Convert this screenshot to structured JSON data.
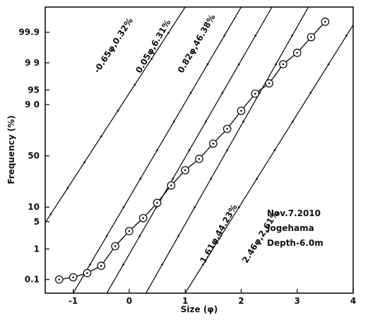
{
  "chart_data": {
    "type": "line",
    "xlabel": "Size (φ)",
    "ylabel": "Frequency (%)",
    "xlim": [
      -1.5,
      4.0
    ],
    "ylim_probability_percent": [
      0.03,
      99.99
    ],
    "y_scale": "probability",
    "grid": false,
    "x_ticks": [
      {
        "value": -1,
        "label": "-1"
      },
      {
        "value": 0,
        "label": "0"
      },
      {
        "value": 1,
        "label": "1"
      },
      {
        "value": 2,
        "label": "2"
      },
      {
        "value": 3,
        "label": "3"
      },
      {
        "value": 4,
        "label": "4"
      }
    ],
    "y_ticks": [
      {
        "value": 0.1,
        "label": "0.1"
      },
      {
        "value": 1,
        "label": "1"
      },
      {
        "value": 5,
        "label": "5"
      },
      {
        "value": 10,
        "label": "10"
      },
      {
        "value": 50,
        "label": "50"
      },
      {
        "value": 90,
        "label": "9 0"
      },
      {
        "value": 95,
        "label": "95"
      },
      {
        "value": 99,
        "label": "9 9"
      },
      {
        "value": 99.9,
        "label": "99.9"
      }
    ],
    "measured": {
      "marker": "circle",
      "x": [
        -1.25,
        -1.0,
        -0.75,
        -0.5,
        -0.25,
        0.0,
        0.25,
        0.5,
        0.75,
        1.0,
        1.25,
        1.5,
        1.75,
        2.0,
        2.25,
        2.5,
        2.75,
        3.0,
        3.25,
        3.5
      ],
      "y": [
        0.1,
        0.12,
        0.17,
        0.3,
        1.2,
        3.0,
        6.0,
        12.0,
        23.0,
        36.0,
        47.0,
        62.0,
        75.0,
        87.0,
        94.0,
        96.5,
        98.9,
        99.5,
        99.85,
        99.96
      ]
    },
    "components": [
      {
        "label": "-0.65φ,0.32%",
        "x": [
          -2.0,
          1.0
        ],
        "y": [
          0.3,
          99.99
        ],
        "label_at": [
          -0.55,
          98.0
        ]
      },
      {
        "label": "0.05φ,6.31%",
        "x": [
          -1.0,
          2.0
        ],
        "y": [
          0.03,
          99.99
        ],
        "label_at": [
          0.2,
          98.0
        ]
      },
      {
        "label": "0.82φ,46.38%",
        "x": [
          -0.4,
          2.55
        ],
        "y": [
          0.03,
          99.99
        ],
        "label_at": [
          0.95,
          98.0
        ]
      },
      {
        "label": "1.61φ,44.23%",
        "x": [
          0.3,
          3.2
        ],
        "y": [
          0.03,
          99.99
        ],
        "label_at": [
          1.35,
          0.35
        ]
      },
      {
        "label": "2.46φ,2.61%",
        "x": [
          1.0,
          4.2
        ],
        "y": [
          0.03,
          99.99
        ],
        "label_at": [
          2.1,
          0.35
        ]
      }
    ],
    "annotation": [
      "Nov.7.2010",
      "Jogehama",
      "Depth-6.0m"
    ]
  }
}
